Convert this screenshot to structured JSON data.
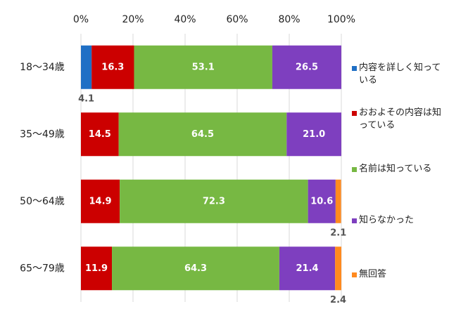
{
  "chart_data": {
    "type": "stacked-bar-horizontal",
    "categories": [
      "18〜34歳",
      "35〜49歳",
      "50〜64歳",
      "65〜79歳"
    ],
    "series": [
      {
        "name": "内容を詳しく知っている",
        "color": "#1f6fc5",
        "values": [
          4.1,
          null,
          null,
          null
        ]
      },
      {
        "name": "おおよその内容は知っている",
        "color": "#cc0000",
        "values": [
          16.3,
          14.5,
          14.9,
          11.9
        ]
      },
      {
        "name": "名前は知っている",
        "color": "#77b843",
        "values": [
          53.1,
          64.5,
          72.3,
          64.3
        ]
      },
      {
        "name": "知らなかった",
        "color": "#7e3fbf",
        "values": [
          26.5,
          21.0,
          10.6,
          21.4
        ],
        "value_labels": [
          "26.5",
          "21.0",
          "10.6",
          "21.4"
        ]
      },
      {
        "name": "無回答",
        "color": "#ff8a1f",
        "values": [
          null,
          null,
          2.1,
          2.4
        ]
      }
    ],
    "xlim": [
      0,
      100
    ],
    "xticks": [
      {
        "value": 0,
        "label": "0%"
      },
      {
        "value": 20,
        "label": "20%"
      },
      {
        "value": 40,
        "label": "40%"
      },
      {
        "value": 60,
        "label": "60%"
      },
      {
        "value": 80,
        "label": "80%"
      },
      {
        "value": 100,
        "label": "100%"
      }
    ],
    "grid": true
  }
}
